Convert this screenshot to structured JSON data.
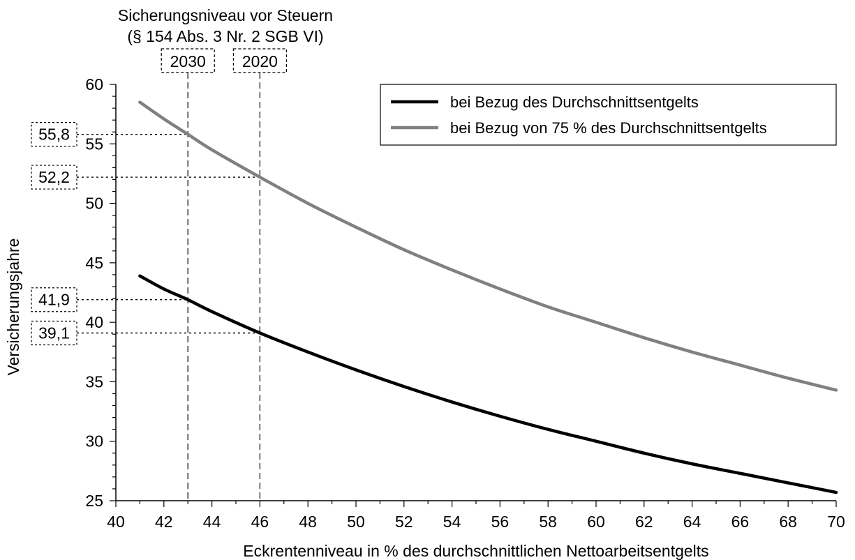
{
  "chart_data": {
    "type": "line",
    "xlabel": "Eckrentenniveau in % des durchschnittlichen Nettoarbeitsentgelts",
    "ylabel": "Versicherungsjahre",
    "xlim": [
      40,
      70
    ],
    "ylim": [
      25,
      60
    ],
    "x_ticks": [
      "40",
      "42",
      "44",
      "46",
      "48",
      "50",
      "52",
      "54",
      "56",
      "58",
      "60",
      "62",
      "64",
      "66",
      "68",
      "70"
    ],
    "y_ticks": [
      "25",
      "30",
      "35",
      "40",
      "45",
      "50",
      "55",
      "60"
    ],
    "grid": false,
    "legend_position": "top-right",
    "series": [
      {
        "name": "bei Bezug des Durchschnittsentgelts",
        "color": "#000000",
        "x": [
          41,
          42,
          43,
          44,
          46,
          48,
          50,
          52,
          54,
          56,
          58,
          60,
          62,
          64,
          66,
          68,
          70
        ],
        "values": [
          43.9,
          42.8,
          41.9,
          40.9,
          39.1,
          37.5,
          36.0,
          34.6,
          33.3,
          32.1,
          31.0,
          30.0,
          29.0,
          28.1,
          27.3,
          26.5,
          25.7
        ]
      },
      {
        "name": "bei Bezug von 75 % des Durchschnittsentgelts",
        "color": "#808080",
        "x": [
          41,
          42,
          43,
          44,
          46,
          48,
          50,
          52,
          54,
          56,
          58,
          60,
          62,
          64,
          66,
          68,
          70
        ],
        "values": [
          58.5,
          57.1,
          55.8,
          54.5,
          52.2,
          50.0,
          48.0,
          46.1,
          44.4,
          42.8,
          41.3,
          40.0,
          38.7,
          37.5,
          36.4,
          35.3,
          34.3
        ]
      }
    ],
    "reference_title_line1": "Sicherungsniveau vor Steuern",
    "reference_title_line2": "(§ 154 Abs. 3 Nr. 2 SGB VI)",
    "vertical_refs": [
      {
        "label": "2030",
        "x": 43
      },
      {
        "label": "2020",
        "x": 46
      }
    ],
    "horizontal_refs": [
      {
        "label": "55,8",
        "y": 55.8,
        "x": 43
      },
      {
        "label": "52,2",
        "y": 52.2,
        "x": 46
      },
      {
        "label": "41,9",
        "y": 41.9,
        "x": 43
      },
      {
        "label": "39,1",
        "y": 39.1,
        "x": 46
      }
    ]
  }
}
